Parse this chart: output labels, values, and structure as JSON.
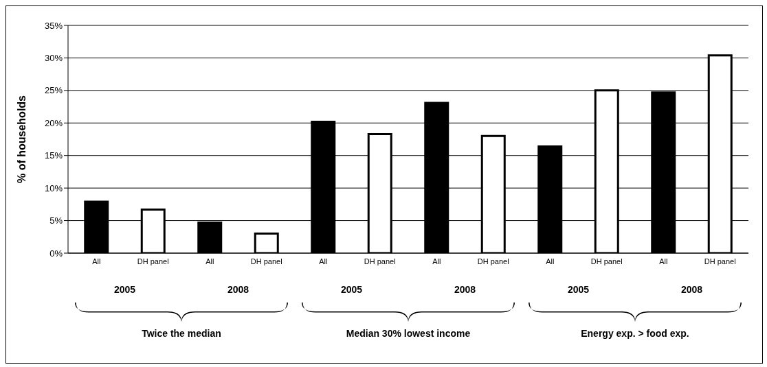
{
  "chart_data": {
    "type": "bar",
    "ylabel": "% of households",
    "categories": [
      "All",
      "DH panel",
      "All",
      "DH panel",
      "All",
      "DH panel",
      "All",
      "DH panel",
      "All",
      "DH panel",
      "All",
      "DH panel"
    ],
    "values": [
      7.9,
      6.7,
      4.7,
      3.0,
      20.2,
      18.3,
      23.1,
      18.0,
      16.4,
      25.0,
      24.7,
      30.4
    ],
    "colors": [
      "#000000",
      "#ffffff",
      "#000000",
      "#ffffff",
      "#000000",
      "#ffffff",
      "#000000",
      "#ffffff",
      "#000000",
      "#ffffff",
      "#000000",
      "#ffffff"
    ],
    "ylim": [
      0,
      35
    ],
    "yticks": [
      {
        "value": 0,
        "label": "0%"
      },
      {
        "value": 5,
        "label": "5%"
      },
      {
        "value": 10,
        "label": "10%"
      },
      {
        "value": 15,
        "label": "15%"
      },
      {
        "value": 20,
        "label": "20%"
      },
      {
        "value": 25,
        "label": "25%"
      },
      {
        "value": 30,
        "label": "30%"
      },
      {
        "value": 35,
        "label": "35%"
      }
    ],
    "grid": "y",
    "annotations": [
      "2005",
      "2008",
      "2005",
      "2008",
      "2005",
      "2008",
      "Twice the median",
      "Median 30% lowest income",
      "Energy exp. > food exp."
    ]
  }
}
